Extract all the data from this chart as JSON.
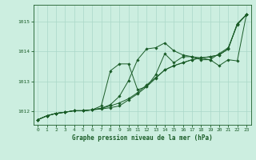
{
  "title": "Graphe pression niveau de la mer (hPa)",
  "background_color": "#cceee0",
  "grid_color": "#aad8c8",
  "line_color": "#1a5c28",
  "xlim": [
    -0.5,
    23.5
  ],
  "ylim": [
    1011.55,
    1015.55
  ],
  "yticks": [
    1012,
    1013,
    1014,
    1015
  ],
  "xticks": [
    0,
    1,
    2,
    3,
    4,
    5,
    6,
    7,
    8,
    9,
    10,
    11,
    12,
    13,
    14,
    15,
    16,
    17,
    18,
    19,
    20,
    21,
    22,
    23
  ],
  "series": [
    [
      1011.72,
      1011.85,
      1011.93,
      1011.97,
      1012.02,
      1012.02,
      1012.05,
      1012.08,
      1012.12,
      1012.18,
      1012.38,
      1012.58,
      1012.82,
      1013.1,
      1013.38,
      1013.52,
      1013.62,
      1013.72,
      1013.78,
      1013.82,
      1013.88,
      1014.08,
      1014.92,
      1015.22
    ],
    [
      1011.72,
      1011.85,
      1011.93,
      1011.97,
      1012.02,
      1012.02,
      1012.05,
      1012.1,
      1012.22,
      1012.5,
      1013.02,
      1013.72,
      1014.08,
      1014.12,
      1014.28,
      1014.02,
      1013.88,
      1013.82,
      1013.78,
      1013.72,
      1013.92,
      1014.12,
      1014.88,
      1015.22
    ],
    [
      1011.72,
      1011.85,
      1011.93,
      1011.97,
      1012.02,
      1012.02,
      1012.05,
      1012.18,
      1013.35,
      1013.58,
      1013.58,
      1012.72,
      1012.82,
      1013.22,
      1013.92,
      1013.62,
      1013.82,
      1013.82,
      1013.72,
      1013.72,
      1013.52,
      1013.72,
      1013.68,
      1015.22
    ],
    [
      1011.72,
      1011.85,
      1011.93,
      1011.97,
      1012.02,
      1012.02,
      1012.05,
      1012.1,
      1012.18,
      1012.28,
      1012.42,
      1012.62,
      1012.88,
      1013.12,
      1013.38,
      1013.52,
      1013.62,
      1013.72,
      1013.78,
      1013.82,
      1013.88,
      1014.08,
      1014.92,
      1015.22
    ]
  ]
}
